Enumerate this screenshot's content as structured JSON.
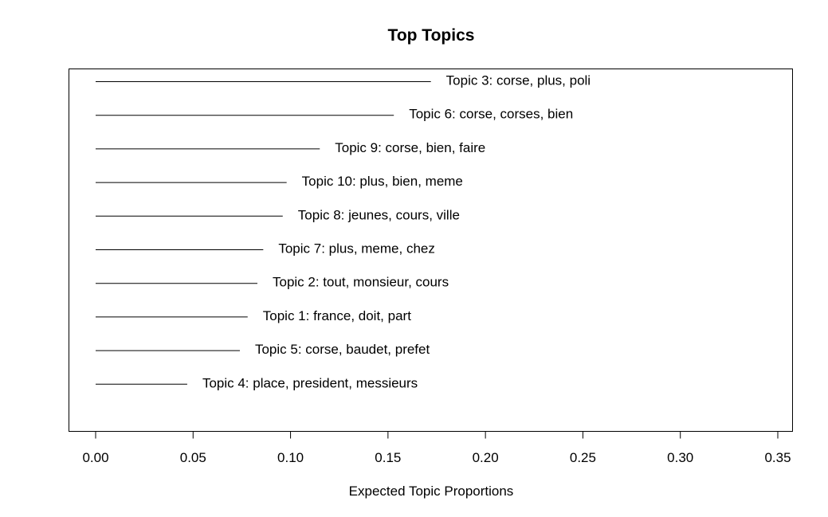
{
  "chart_data": {
    "type": "bar",
    "orientation": "horizontal",
    "title": "Top Topics",
    "xlabel": "Expected Topic Proportions",
    "ylabel": "",
    "xlim": [
      0,
      0.35
    ],
    "xticks": [
      "0.00",
      "0.05",
      "0.10",
      "0.15",
      "0.20",
      "0.25",
      "0.30",
      "0.35"
    ],
    "grid": false,
    "categories": [
      "Topic 3: corse, plus, poli",
      "Topic 6: corse, corses, bien",
      "Topic 9: corse, bien, faire",
      "Topic 10: plus, bien, meme",
      "Topic 8: jeunes, cours, ville",
      "Topic 7: plus, meme, chez",
      "Topic 2: tout, monsieur, cours",
      "Topic 1: france, doit, part",
      "Topic 5: corse, baudet, prefet",
      "Topic 4: place, president, messieurs"
    ],
    "values": [
      0.172,
      0.153,
      0.115,
      0.098,
      0.096,
      0.086,
      0.083,
      0.078,
      0.074,
      0.047
    ]
  }
}
